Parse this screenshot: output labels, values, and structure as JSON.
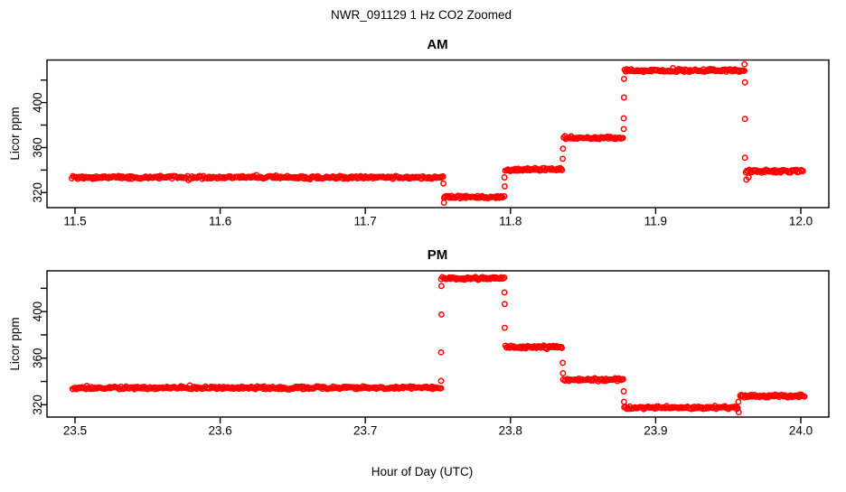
{
  "figure": {
    "title": "NWR_091129  1 Hz CO2 Zoomed",
    "xlabel": "Hour of Day (UTC)",
    "point_color": "#FF0000",
    "axis_color": "#000000",
    "background": "#FFFFFF"
  },
  "chart_data": [
    {
      "type": "scatter",
      "title": "AM",
      "ylabel": "Licor ppm",
      "marker": "open-circle",
      "color": "#FF0000",
      "grid": false,
      "legend": "none",
      "xlim": [
        11.4807,
        12.0193
      ],
      "ylim": [
        306.6,
        437.8
      ],
      "x_ticks": [
        11.5,
        11.6,
        11.7,
        11.8,
        11.9,
        12.0
      ],
      "x_tick_labels": [
        "11.5",
        "11.6",
        "11.7",
        "11.8",
        "11.9",
        "12.0"
      ],
      "y_ticks": [
        320,
        340,
        360,
        380,
        400,
        420
      ],
      "y_tick_labels": [
        "320",
        "",
        "360",
        "",
        "400",
        ""
      ],
      "segments": [
        {
          "x_start": 11.498,
          "x_end": 11.7535,
          "value": 333.5
        },
        {
          "x_start": 11.754,
          "x_end": 11.7955,
          "value": 316.0
        },
        {
          "x_start": 11.7965,
          "x_end": 11.8355,
          "value": 340.5
        },
        {
          "x_start": 11.8365,
          "x_end": 11.8775,
          "value": 368.5
        },
        {
          "x_start": 11.8785,
          "x_end": 11.961,
          "value": 428.5
        },
        {
          "x_start": 11.962,
          "x_end": 12.0015,
          "value": 339.0
        }
      ],
      "transition_points": [
        [
          11.7538,
          328.0
        ],
        [
          11.7542,
          311.0
        ],
        [
          11.7958,
          333.5
        ],
        [
          11.796,
          325.5
        ],
        [
          11.836,
          350.0
        ],
        [
          11.8362,
          359.0
        ],
        [
          11.878,
          376.5
        ],
        [
          11.878,
          386.0
        ],
        [
          11.8782,
          404.5
        ],
        [
          11.8782,
          421.0
        ],
        [
          11.9612,
          434.0
        ],
        [
          11.9615,
          418.0
        ],
        [
          11.9615,
          385.5
        ],
        [
          11.9615,
          351.0
        ],
        [
          11.9625,
          331.5
        ],
        [
          11.964,
          333.5
        ]
      ]
    },
    {
      "type": "scatter",
      "title": "PM",
      "ylabel": "Licor ppm",
      "marker": "open-circle",
      "color": "#FF0000",
      "grid": false,
      "legend": "none",
      "xlim": [
        23.4807,
        24.0193
      ],
      "ylim": [
        309.4,
        435.0
      ],
      "x_ticks": [
        23.5,
        23.6,
        23.7,
        23.8,
        23.9,
        24.0
      ],
      "x_tick_labels": [
        "23.5",
        "23.6",
        "23.7",
        "23.8",
        "23.9",
        "24.0"
      ],
      "y_ticks": [
        320,
        340,
        360,
        380,
        400,
        420
      ],
      "y_tick_labels": [
        "320",
        "",
        "360",
        "",
        "400",
        ""
      ],
      "segments": [
        {
          "x_start": 23.498,
          "x_end": 23.752,
          "value": 334.5
        },
        {
          "x_start": 23.7525,
          "x_end": 23.7955,
          "value": 428.5
        },
        {
          "x_start": 23.7965,
          "x_end": 23.8355,
          "value": 369.5
        },
        {
          "x_start": 23.8365,
          "x_end": 23.8775,
          "value": 341.5
        },
        {
          "x_start": 23.8785,
          "x_end": 23.9565,
          "value": 317.5
        },
        {
          "x_start": 23.958,
          "x_end": 24.0025,
          "value": 327.5
        }
      ],
      "transition_points": [
        [
          23.7522,
          340.5
        ],
        [
          23.7522,
          365.0
        ],
        [
          23.7524,
          397.5
        ],
        [
          23.7524,
          422.0
        ],
        [
          23.7958,
          416.5
        ],
        [
          23.796,
          406.5
        ],
        [
          23.796,
          386.0
        ],
        [
          23.836,
          356.0
        ],
        [
          23.8362,
          347.0
        ],
        [
          23.878,
          331.5
        ],
        [
          23.8782,
          322.5
        ],
        [
          23.957,
          322.5
        ],
        [
          23.9572,
          313.5
        ]
      ]
    }
  ]
}
